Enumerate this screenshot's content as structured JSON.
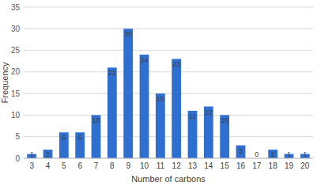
{
  "chart_data": {
    "type": "bar",
    "x_label": "Number of carbons",
    "y_label": "Frequency",
    "categories": [
      "3",
      "4",
      "5",
      "6",
      "7",
      "8",
      "9",
      "10",
      "11",
      "12",
      "13",
      "14",
      "15",
      "16",
      "17",
      "18",
      "19",
      "20"
    ],
    "values": [
      1,
      2,
      6,
      6,
      10,
      21,
      30,
      24,
      15,
      23,
      11,
      12,
      10,
      3,
      0,
      2,
      1,
      1
    ],
    "color": "#2e6fd0",
    "ylim": [
      0,
      35
    ],
    "yticks": [
      0,
      5,
      10,
      15,
      20,
      25,
      30,
      35
    ],
    "grid": true,
    "data_labels": true
  }
}
